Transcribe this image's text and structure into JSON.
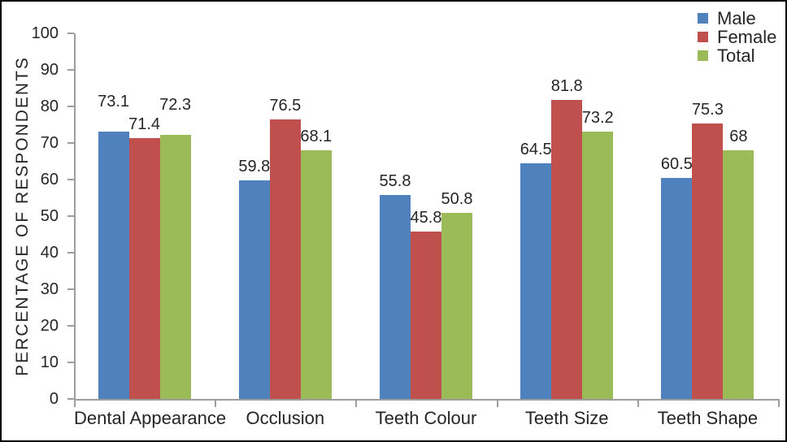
{
  "chart_data": {
    "type": "bar",
    "title": "",
    "categories": [
      "Dental Appearance",
      "Occlusion",
      "Teeth Colour",
      "Teeth Size",
      "Teeth Shape"
    ],
    "series": [
      {
        "name": "Male",
        "color": "#4F81BD",
        "values": [
          73.1,
          59.8,
          55.8,
          64.5,
          60.5
        ]
      },
      {
        "name": "Female",
        "color": "#C0504D",
        "values": [
          71.4,
          76.5,
          45.8,
          81.8,
          75.3
        ]
      },
      {
        "name": "Total",
        "color": "#9BBB59",
        "values": [
          72.3,
          68.1,
          50.8,
          73.2,
          68
        ]
      }
    ],
    "xlabel": "",
    "ylabel": "PERCENTAGE OF RESPONDENTS",
    "ylim": [
      0,
      100
    ],
    "ytick_step": 10,
    "yticks": [
      0,
      10,
      20,
      30,
      40,
      50,
      60,
      70,
      80,
      90,
      100
    ],
    "grid": false,
    "data_labels": true,
    "legend_position": "top-right",
    "axis_color": "#9D9D9D",
    "text_color": "#262626",
    "frame_border_color": "#000000",
    "background_color": "#FFFFFF"
  }
}
